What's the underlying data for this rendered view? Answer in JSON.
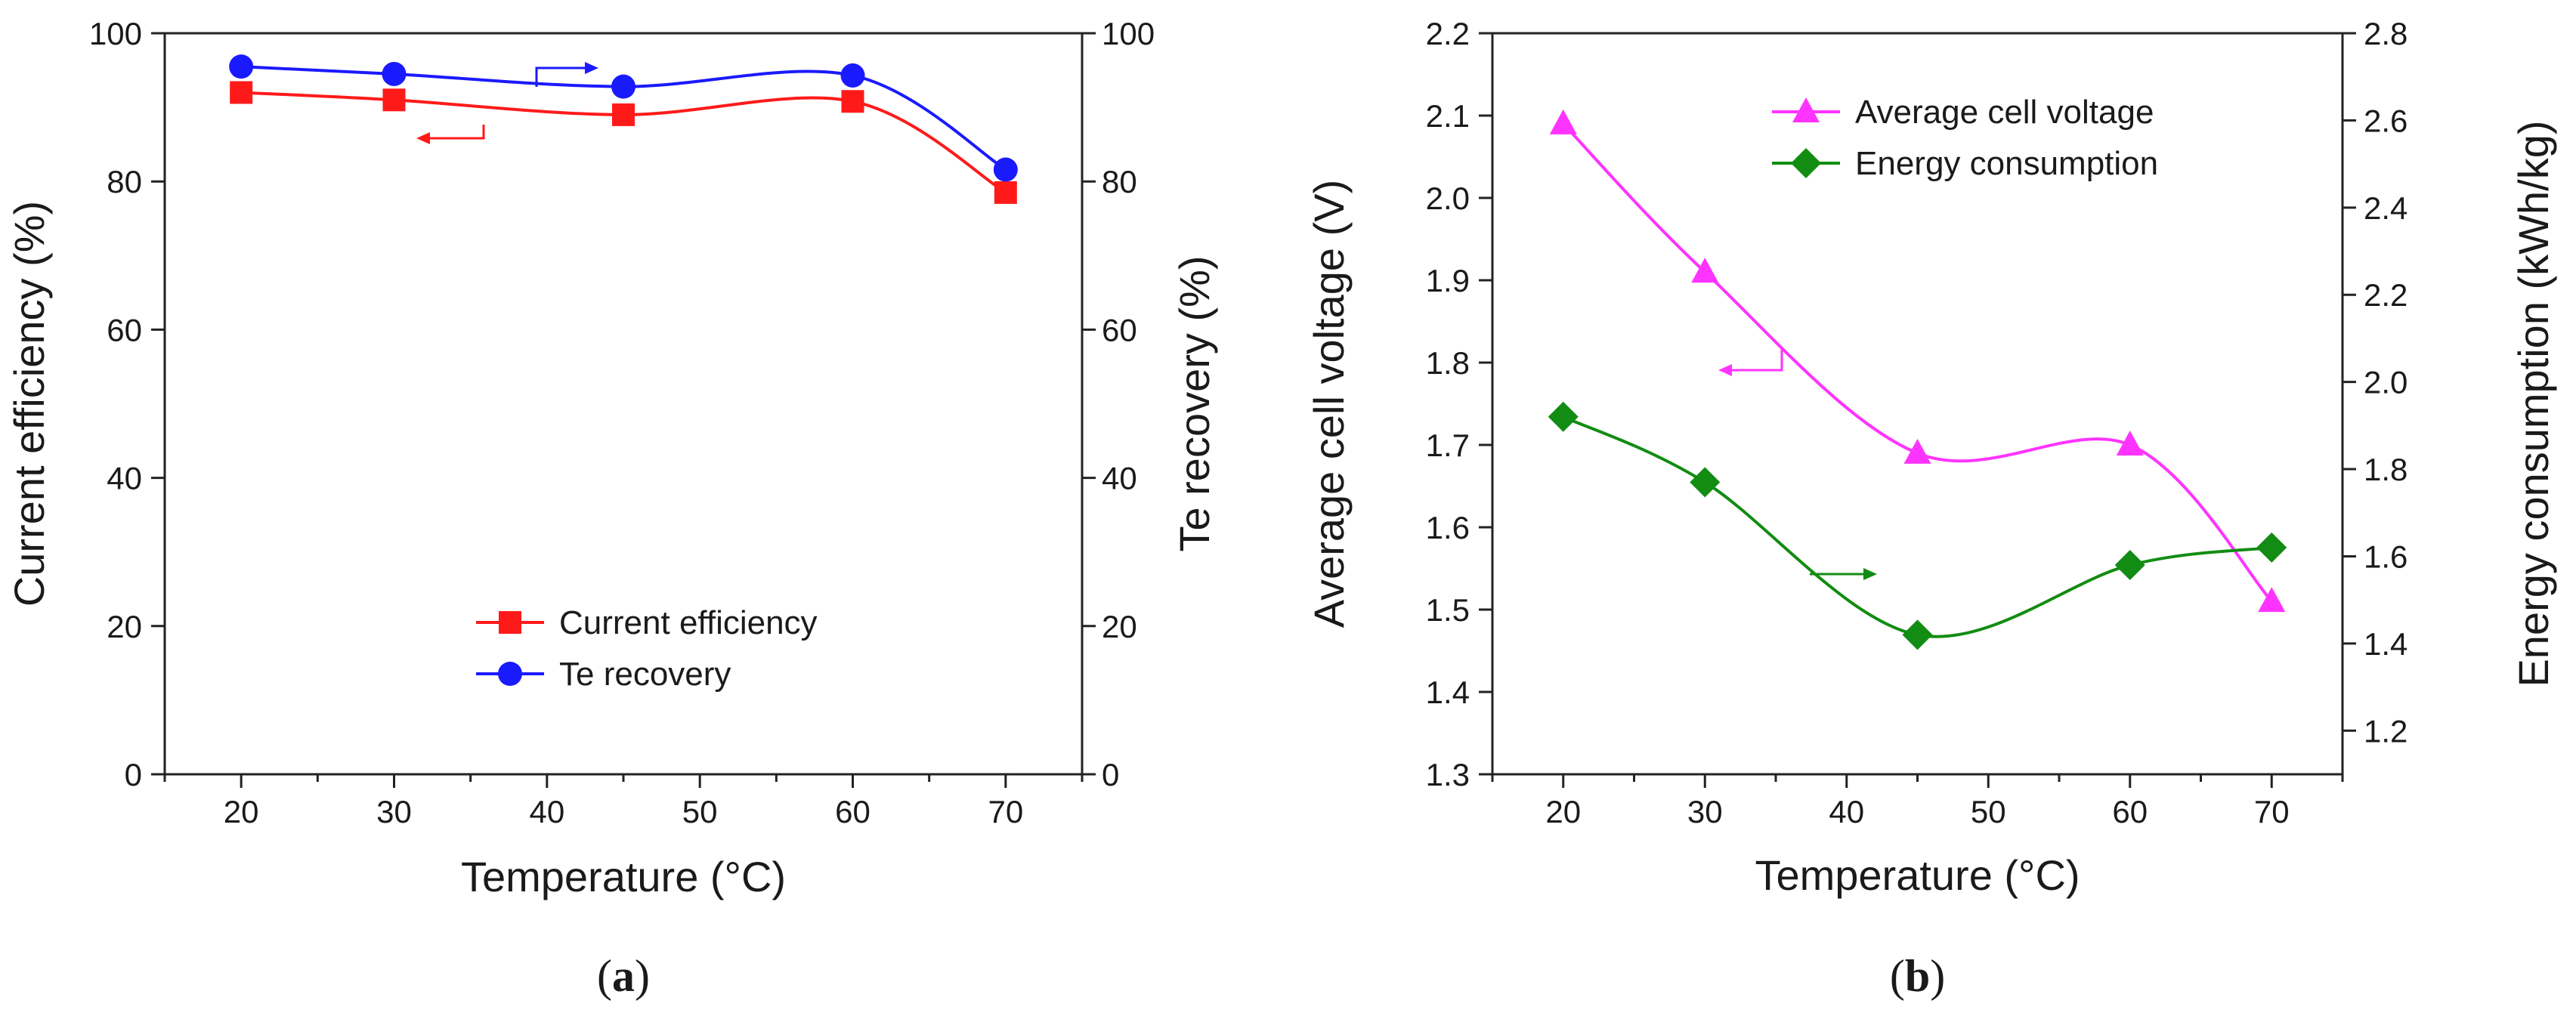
{
  "chart_data": [
    {
      "type": "line",
      "caption": "a",
      "title": "",
      "xlabel": "Temperature (°C)",
      "ylabel": "Current efficiency (%)",
      "y2label": "Te recovery (%)",
      "xlim": [
        15,
        75
      ],
      "xticks": [
        20,
        30,
        40,
        50,
        60,
        70
      ],
      "ylim": [
        0,
        100
      ],
      "yticks": [
        0,
        20,
        40,
        60,
        80,
        100
      ],
      "y2lim": [
        0,
        100
      ],
      "y2ticks": [
        0,
        20,
        40,
        60,
        80,
        100
      ],
      "x": [
        20,
        30,
        45,
        60,
        70
      ],
      "legend_position": "lower-right",
      "series": [
        {
          "name": "Current efficiency",
          "axis": "left",
          "color": "#ff1a1a",
          "marker": "square",
          "values": [
            92,
            91,
            89,
            90.8,
            78.5
          ]
        },
        {
          "name": "Te recovery",
          "axis": "right",
          "color": "#1a1aff",
          "marker": "circle",
          "values": [
            95.5,
            94.5,
            92.8,
            94.3,
            81.6
          ]
        }
      ]
    },
    {
      "type": "line",
      "caption": "b",
      "title": "",
      "xlabel": "Temperature (°C)",
      "ylabel": "Average cell voltage (V)",
      "y2label": "Energy consumption (kWh/kg)",
      "xlim": [
        15,
        75
      ],
      "xticks": [
        20,
        30,
        40,
        50,
        60,
        70
      ],
      "ylim": [
        1.3,
        2.2
      ],
      "yticks": [
        1.3,
        1.4,
        1.5,
        1.6,
        1.7,
        1.8,
        1.9,
        2.0,
        2.1,
        2.2
      ],
      "y2lim": [
        1.1,
        2.8
      ],
      "y2ticks": [
        1.2,
        1.4,
        1.6,
        1.8,
        2.0,
        2.2,
        2.4,
        2.6,
        2.8
      ],
      "x": [
        20,
        30,
        45,
        60,
        70
      ],
      "legend_position": "top-right",
      "series": [
        {
          "name": "Average cell voltage",
          "axis": "left",
          "color": "#ff33ff",
          "marker": "triangle",
          "values": [
            2.09,
            1.91,
            1.69,
            1.7,
            1.51
          ]
        },
        {
          "name": "Energy consumption",
          "axis": "right",
          "color": "#128c12",
          "marker": "diamond",
          "values": [
            1.92,
            1.77,
            1.42,
            1.58,
            1.62
          ]
        }
      ]
    }
  ]
}
